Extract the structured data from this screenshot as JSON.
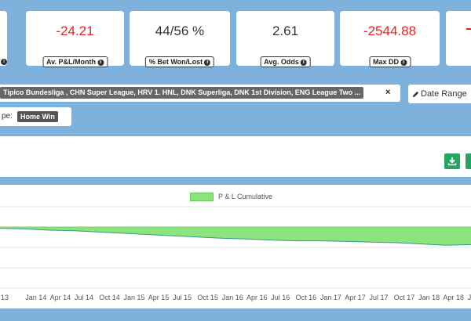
{
  "kpis": [
    {
      "value": "-24.21",
      "label": "Av. P&L/Month",
      "color": "#e32424"
    },
    {
      "value": "44/56 %",
      "label": "% Bet Won/Lost",
      "color": "#333333"
    },
    {
      "value": "2.61",
      "label": "Avg. Odds",
      "color": "#333333"
    },
    {
      "value": "-2544.88",
      "label": "Max DD",
      "color": "#e32424"
    }
  ],
  "filters": {
    "leagues": "Tipico Bundesliga , CHN Super League, HRV 1. HNL, DNK Superliga, DNK 1st Division, ENG League Two ...",
    "date_range_label": "Date Range",
    "type_label": "pe:",
    "type_value": "Home Win"
  },
  "icons": {
    "info": "info-icon",
    "download": "download-icon",
    "pencil": "pencil-icon",
    "remove": "close-icon"
  },
  "chart_data": {
    "type": "area",
    "legend": "P & L Cumulative",
    "legend_placement": "top-center",
    "grid": true,
    "color": "#8be47c",
    "x_ticks": [
      "13",
      "Jan 14",
      "Apr 14",
      "Jul 14",
      "Oct 14",
      "Jan 15",
      "Apr 15",
      "Jul 15",
      "Oct 15",
      "Jan 16",
      "Apr 16",
      "Jul 16",
      "Oct 16",
      "Jan 17",
      "Apr 17",
      "Jul 17",
      "Oct 17",
      "Jan 18",
      "Apr 18",
      "Jul"
    ],
    "series": [
      {
        "name": "P & L Cumulative",
        "values": [
          -2,
          -3,
          -5,
          -6,
          -8,
          -10,
          -12,
          -14,
          -16,
          -18,
          -19,
          -21,
          -22,
          -22,
          -23,
          -24,
          -25,
          -27,
          -29,
          -28
        ]
      }
    ]
  }
}
